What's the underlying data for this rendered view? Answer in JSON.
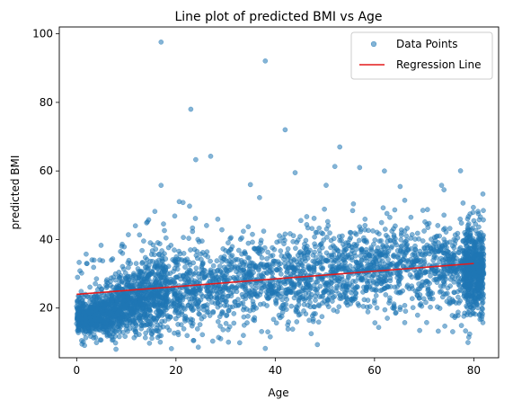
{
  "chart_data": {
    "type": "scatter",
    "title": "Line plot of predicted BMI vs Age",
    "xlabel": "Age",
    "ylabel": "predicted BMI",
    "xlim": [
      -3.5,
      85
    ],
    "ylim": [
      5.5,
      102
    ],
    "xticks": [
      0,
      20,
      40,
      60,
      80
    ],
    "yticks": [
      20,
      40,
      60,
      80,
      100
    ],
    "grid": false,
    "legend": "top-right",
    "series": [
      {
        "name": "Data Points",
        "kind": "scatter",
        "color": "#1f77b4",
        "alpha": 0.55,
        "point_count": 4000,
        "outliers": [
          {
            "x": 17,
            "y": 97.6
          },
          {
            "x": 38,
            "y": 92.1
          },
          {
            "x": 23,
            "y": 78.0
          },
          {
            "x": 42,
            "y": 72.0
          },
          {
            "x": 53,
            "y": 67.0
          },
          {
            "x": 24,
            "y": 63.3
          },
          {
            "x": 27,
            "y": 64.3
          },
          {
            "x": 52,
            "y": 61.3
          },
          {
            "x": 57,
            "y": 61.0
          },
          {
            "x": 62,
            "y": 60.0
          },
          {
            "x": 44,
            "y": 59.5
          },
          {
            "x": 17,
            "y": 55.8
          },
          {
            "x": 2,
            "y": 33.0
          },
          {
            "x": 1,
            "y": 10.5
          },
          {
            "x": 39,
            "y": 11.6
          },
          {
            "x": 79,
            "y": 11.5
          },
          {
            "x": 74,
            "y": 54.5
          },
          {
            "x": 35,
            "y": 56.0
          }
        ]
      },
      {
        "name": "Regression Line",
        "kind": "line",
        "color": "#e41a1c",
        "x": [
          0,
          80
        ],
        "y": [
          24.0,
          33.0
        ]
      }
    ]
  }
}
